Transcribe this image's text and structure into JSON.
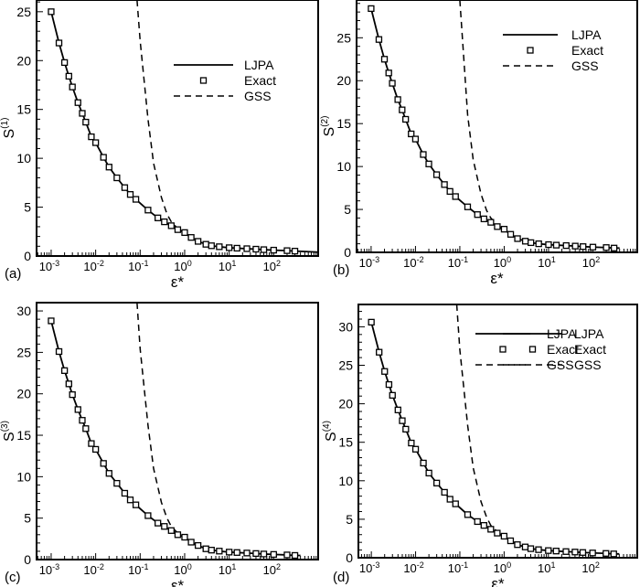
{
  "chart_data": [
    {
      "panel_label": "(a)",
      "type": "line",
      "xscale": "log",
      "xlabel": "ε*",
      "ylabel_base": "S",
      "ylabel_sup": "(1)",
      "xlim": [
        0.00047,
        1000
      ],
      "ylim": [
        0,
        26.2
      ],
      "yticks": [
        0,
        5,
        10,
        15,
        20,
        25
      ],
      "xtick_labels": [
        "10^-3",
        "10^-2",
        "10^-1",
        "10^0",
        "10^1",
        "10^2"
      ],
      "legend": [
        "LJPA",
        "Exact",
        "GSS"
      ],
      "x": [
        0.001,
        0.0015,
        0.002,
        0.0025,
        0.003,
        0.004,
        0.005,
        0.006,
        0.008,
        0.01,
        0.015,
        0.02,
        0.03,
        0.045,
        0.06,
        0.08,
        0.15,
        0.25,
        0.35,
        0.5,
        0.7,
        1,
        1.4,
        2,
        3,
        4,
        6,
        10,
        15,
        25,
        40,
        60,
        100,
        200,
        300
      ],
      "exact": [
        25.0,
        21.8,
        19.8,
        18.4,
        17.3,
        15.7,
        14.6,
        13.7,
        12.2,
        11.6,
        10.1,
        9.1,
        8.0,
        7.0,
        6.3,
        5.8,
        4.7,
        3.9,
        3.5,
        3.1,
        2.7,
        2.4,
        1.9,
        1.5,
        1.2,
        1.05,
        0.95,
        0.85,
        0.8,
        0.75,
        0.7,
        0.65,
        0.6,
        0.55,
        0.5
      ],
      "ljpa_end": [
        1000,
        0.4
      ],
      "gss_x": [
        0.085,
        0.1,
        0.15,
        0.2,
        0.3,
        0.4,
        0.5,
        0.7,
        1,
        1.5,
        2
      ],
      "gss_y": [
        26.2,
        22,
        14,
        9.5,
        6,
        4.3,
        3.5,
        2.8,
        2.3,
        1.8,
        1.4
      ]
    },
    {
      "panel_label": "(b)",
      "type": "line",
      "xscale": "log",
      "xlabel": "ε*",
      "ylabel_base": "S",
      "ylabel_sup": "(2)",
      "xlim": [
        0.00047,
        1000
      ],
      "ylim": [
        0,
        29.4
      ],
      "yticks": [
        0,
        5,
        10,
        15,
        20,
        25
      ],
      "xtick_labels": [
        "10^-3",
        "10^-2",
        "10^-1",
        "10^0",
        "10^1",
        "10^2"
      ],
      "legend": [
        "LJPA",
        "Exact",
        "GSS"
      ],
      "x": [
        0.001,
        0.0015,
        0.002,
        0.0025,
        0.003,
        0.004,
        0.005,
        0.006,
        0.008,
        0.01,
        0.015,
        0.02,
        0.03,
        0.045,
        0.06,
        0.08,
        0.15,
        0.25,
        0.35,
        0.5,
        0.7,
        1,
        1.4,
        2,
        3,
        4,
        6,
        10,
        15,
        25,
        40,
        60,
        100,
        200,
        300
      ],
      "exact": [
        28.4,
        24.8,
        22.5,
        20.9,
        19.7,
        17.8,
        16.6,
        15.5,
        13.8,
        13.2,
        11.4,
        10.3,
        9.05,
        7.9,
        7.1,
        6.5,
        5.3,
        4.4,
        3.9,
        3.5,
        3.0,
        2.7,
        2.1,
        1.6,
        1.3,
        1.13,
        1.0,
        0.9,
        0.84,
        0.79,
        0.73,
        0.67,
        0.61,
        0.56,
        0.5
      ],
      "ljpa_end": [
        400,
        0.5
      ],
      "gss_x": [
        0.1,
        0.15,
        0.2,
        0.3,
        0.4,
        0.5,
        0.7,
        1,
        1.5,
        2
      ],
      "gss_y": [
        29.4,
        16,
        10.8,
        6.8,
        4.9,
        4.0,
        3.2,
        2.6,
        2.0,
        1.6
      ]
    },
    {
      "panel_label": "(c)",
      "type": "line",
      "xscale": "log",
      "xlabel": "ε*",
      "ylabel_base": "S",
      "ylabel_sup": "(3)",
      "xlim": [
        0.00047,
        1000
      ],
      "ylim": [
        0,
        31
      ],
      "yticks": [
        0,
        5,
        10,
        15,
        20,
        25,
        30
      ],
      "xtick_labels": [
        "10^-3",
        "10^-2",
        "10^-1",
        "10^0",
        "10^1",
        "10^2"
      ],
      "legend": [
        "LJPA",
        "Exact",
        "GSS"
      ],
      "x": [
        0.001,
        0.0015,
        0.002,
        0.0025,
        0.003,
        0.004,
        0.005,
        0.006,
        0.008,
        0.01,
        0.015,
        0.02,
        0.03,
        0.045,
        0.06,
        0.08,
        0.15,
        0.25,
        0.35,
        0.5,
        0.7,
        1,
        1.4,
        2,
        3,
        4,
        6,
        10,
        15,
        25,
        40,
        60,
        100,
        200,
        300
      ],
      "exact": [
        28.8,
        25.1,
        22.8,
        21.2,
        19.9,
        18.1,
        16.8,
        15.8,
        14.0,
        13.3,
        11.6,
        10.4,
        9.2,
        8.0,
        7.2,
        6.6,
        5.3,
        4.4,
        4.0,
        3.5,
        3.0,
        2.7,
        2.1,
        1.7,
        1.3,
        1.14,
        1.02,
        0.9,
        0.85,
        0.79,
        0.73,
        0.67,
        0.62,
        0.56,
        0.5
      ],
      "ljpa_end": [
        400,
        0.5
      ],
      "gss_x": [
        0.085,
        0.1,
        0.15,
        0.2,
        0.3,
        0.4,
        0.5,
        0.7,
        1,
        1.5,
        2
      ],
      "gss_y": [
        31,
        25.4,
        16.2,
        11,
        6.9,
        5.0,
        4.0,
        3.2,
        2.6,
        2.0,
        1.6
      ]
    },
    {
      "panel_label": "(d)",
      "type": "line",
      "xscale": "log",
      "xlabel": "ε*",
      "ylabel_base": "S",
      "ylabel_sup": "(4)",
      "xlim": [
        0.00051,
        1020
      ],
      "ylim": [
        0,
        32.9
      ],
      "yticks": [
        0,
        5,
        10,
        15,
        20,
        25,
        30
      ],
      "xtick_labels": [
        "10^-3",
        "10^-2",
        "10^-1",
        "10^0",
        "10^1",
        "10^2"
      ],
      "legend": [
        "LJPA",
        "Exact",
        "GSS"
      ],
      "x": [
        0.001,
        0.0015,
        0.002,
        0.0025,
        0.003,
        0.004,
        0.005,
        0.006,
        0.008,
        0.01,
        0.015,
        0.02,
        0.03,
        0.045,
        0.06,
        0.08,
        0.15,
        0.25,
        0.35,
        0.5,
        0.7,
        1,
        1.4,
        2,
        3,
        4,
        6,
        10,
        15,
        25,
        40,
        60,
        100,
        200,
        300
      ],
      "exact": [
        30.6,
        26.7,
        24.2,
        22.5,
        21.1,
        19.2,
        17.8,
        16.7,
        14.9,
        14.1,
        12.3,
        11.0,
        9.7,
        8.5,
        7.6,
        7.0,
        5.6,
        4.7,
        4.2,
        3.7,
        3.2,
        2.8,
        2.2,
        1.7,
        1.4,
        1.18,
        1.05,
        0.93,
        0.87,
        0.8,
        0.74,
        0.68,
        0.62,
        0.56,
        0.5
      ],
      "ljpa_end": [
        400,
        0.5
      ],
      "gss_x": [
        0.085,
        0.1,
        0.15,
        0.2,
        0.3,
        0.4,
        0.5,
        0.7,
        1,
        1.5,
        2
      ],
      "gss_y": [
        32.9,
        27,
        17.2,
        11.7,
        7.3,
        5.3,
        4.2,
        3.4,
        2.7,
        2.1,
        1.7
      ]
    }
  ]
}
